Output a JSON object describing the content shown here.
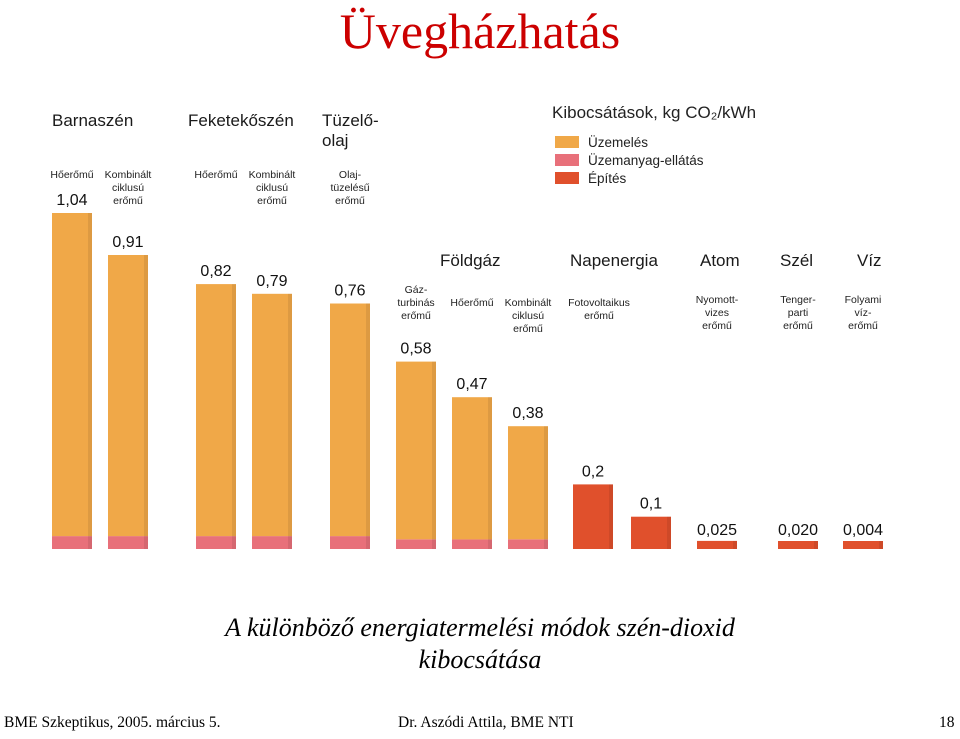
{
  "slide": {
    "title": "Üvegházhatás",
    "caption_line1": "A különböző energiatermelési módok szén-dioxid",
    "caption_line2": "kibocsátása",
    "footer_left": "BME Szkeptikus, 2005. március 5.",
    "footer_center": "Dr. Aszódi Attila, BME NTI",
    "footer_right": "18"
  },
  "chart_data": {
    "type": "bar",
    "stacked": true,
    "title": "Kibocsátások, kg CO₂/kWh",
    "groups": [
      {
        "name": [
          "Barnaszén"
        ],
        "bars": [
          0,
          1
        ]
      },
      {
        "name": [
          "Feketekőszén"
        ],
        "bars": [
          2,
          3
        ]
      },
      {
        "name": [
          "Tüzelő-",
          "olaj"
        ],
        "bars": [
          4
        ]
      },
      {
        "name": [
          "Földgáz"
        ],
        "bars": [
          5,
          6,
          7
        ]
      },
      {
        "name": [
          "Napenergia"
        ],
        "bars": [
          8,
          9
        ]
      },
      {
        "name": [
          "Atom"
        ],
        "bars": [
          10
        ]
      },
      {
        "name": [
          "Szél"
        ],
        "bars": [
          11
        ]
      },
      {
        "name": [
          "Víz"
        ],
        "bars": [
          12
        ]
      }
    ],
    "categories": [
      {
        "label": [
          "Hőerőmű"
        ],
        "value_label": "1,04",
        "total": 1.04
      },
      {
        "label": [
          "Kombinált",
          "ciklusú",
          "erőmű"
        ],
        "value_label": "0,91",
        "total": 0.91
      },
      {
        "label": [
          "Hőerőmű"
        ],
        "value_label": "0,82",
        "total": 0.82
      },
      {
        "label": [
          "Kombinált",
          "ciklusú",
          "erőmű"
        ],
        "value_label": "0,79",
        "total": 0.79
      },
      {
        "label": [
          "Olaj-",
          "tüzelésű",
          "erőmű"
        ],
        "value_label": "0,76",
        "total": 0.76
      },
      {
        "label": [
          "Gáz-",
          "turbinás",
          "erőmű"
        ],
        "value_label": "0,58",
        "total": 0.58
      },
      {
        "label": [
          "Hőerőmű"
        ],
        "value_label": "0,47",
        "total": 0.47
      },
      {
        "label": [
          "Kombinált",
          "ciklusú",
          "erőmű"
        ],
        "value_label": "0,38",
        "total": 0.38
      },
      {
        "label": [
          "Fotovoltaikus",
          "erőmű"
        ],
        "value_label": "0,2",
        "total": 0.2
      },
      {
        "label": [],
        "value_label": "0,1",
        "total": 0.1
      },
      {
        "label": [
          "Nyomott-",
          "vizes",
          "erőmű"
        ],
        "value_label": "0,025",
        "total": 0.025
      },
      {
        "label": [
          "Tenger-",
          "parti",
          "erőmű"
        ],
        "value_label": "0,020",
        "total": 0.02
      },
      {
        "label": [
          "Folyami",
          "víz-",
          "erőmű"
        ],
        "value_label": "0,004",
        "total": 0.004
      }
    ],
    "series": [
      {
        "name": "Üzemelés",
        "color": "#f0a848",
        "values": [
          1.0,
          0.87,
          0.78,
          0.75,
          0.72,
          0.55,
          0.44,
          0.35,
          0,
          0,
          0,
          0,
          0
        ]
      },
      {
        "name": "Üzemanyag-ellátás",
        "color": "#e8707a",
        "values": [
          0.04,
          0.04,
          0.04,
          0.04,
          0.04,
          0.03,
          0.03,
          0.03,
          0,
          0,
          0,
          0,
          0
        ]
      },
      {
        "name": "Építés",
        "color": "#e0502c",
        "values": [
          0,
          0,
          0,
          0,
          0,
          0,
          0,
          0,
          0.2,
          0.1,
          0.025,
          0.02,
          0.004
        ]
      }
    ],
    "ylim": [
      0,
      1.04
    ],
    "legend_position": "top-right",
    "grid": false
  }
}
